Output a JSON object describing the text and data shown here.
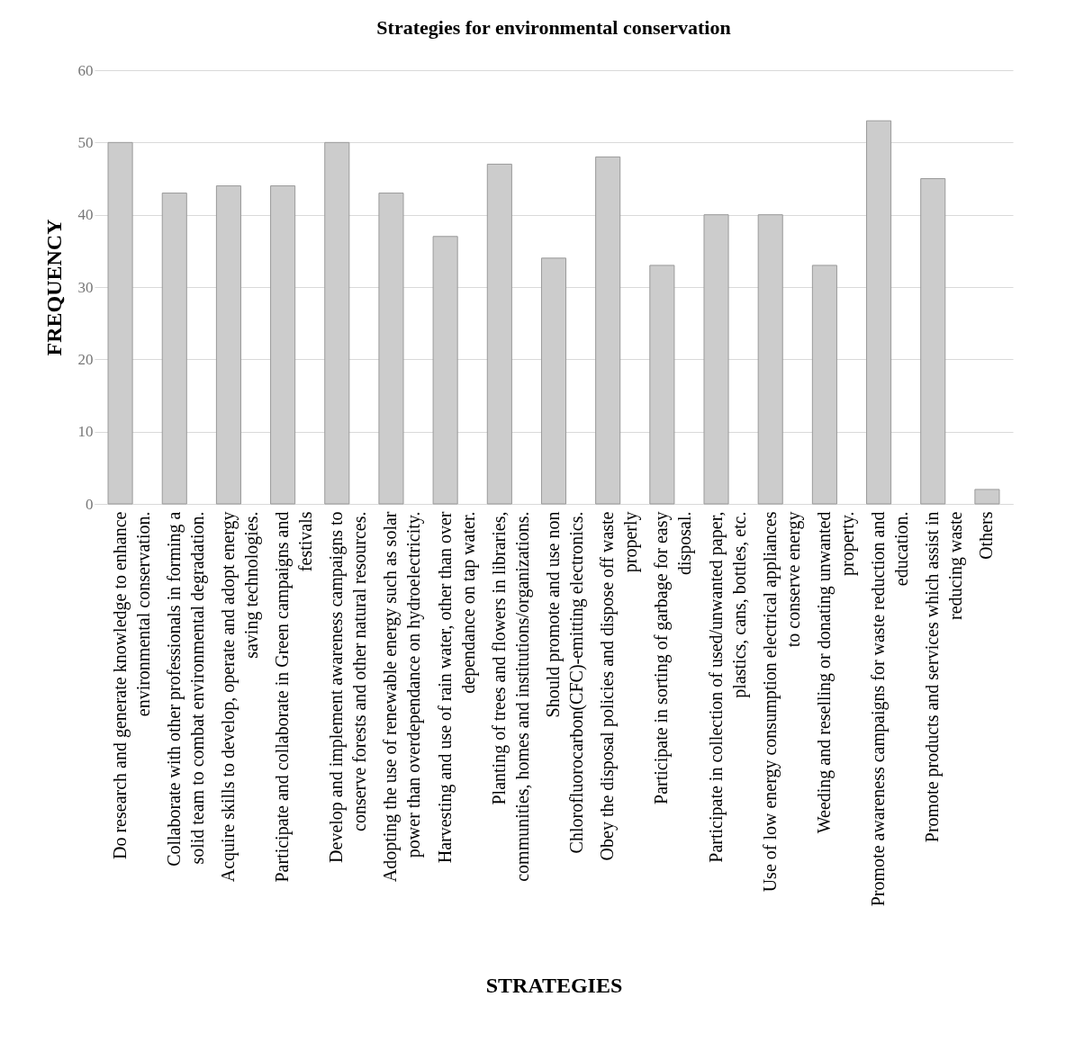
{
  "chart_data": {
    "type": "bar",
    "title": "Strategies for environmental conservation",
    "xlabel": "STRATEGIES",
    "ylabel": "FREQUENCY",
    "categories": [
      "Do research and generate knowledge to enhance environmental conservation.",
      "Collaborate with other professionals in forming a solid team to combat environmental degradation.",
      "Acquire skills to develop, operate and adopt energy saving technologies.",
      "Participate and collaborate in Green campaigns and festivals",
      "Develop and implement awareness campaigns to conserve forests and other natural resources.",
      "Adopting the use of renewable energy such as solar power than overdependance on hydroelectricity.",
      "Harvesting and use of rain water, other than over dependance on tap water.",
      "Planting of trees and flowers in libraries, communities, homes and institutions/organizations.",
      "Should promote and use non Chlorofluorocarbon(CFC)-emitting electronics.",
      "Obey the disposal policies and dispose off waste properly",
      "Participate in sorting of garbage for easy disposal.",
      "Participate in collection of used/unwanted paper, plastics, cans, bottles, etc.",
      "Use of low energy consumption electrical appliances to conserve energy",
      "Weeding and reselling or donating unwanted property.",
      "Promote awareness campaigns for waste reduction and education.",
      "Promote products and services which assist in reducing waste",
      "Others"
    ],
    "values": [
      50,
      43,
      44,
      44,
      50,
      43,
      37,
      47,
      34,
      48,
      33,
      40,
      40,
      33,
      53,
      45,
      2
    ],
    "color": "#cccccc",
    "ylim": [
      0,
      60
    ],
    "yticks": [
      0,
      10,
      20,
      30,
      40,
      50,
      60
    ],
    "grid": "y"
  }
}
